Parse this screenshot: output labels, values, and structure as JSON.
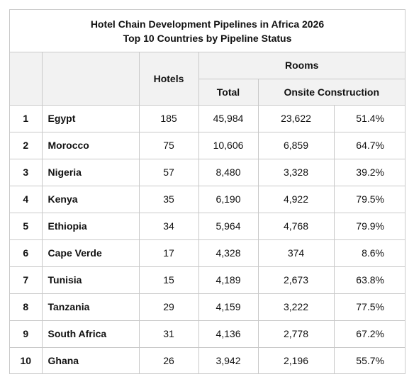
{
  "title": "Hotel Chain Development Pipelines in Africa 2026",
  "subtitle": "Top 10 Countries by Pipeline Status",
  "headers": {
    "hotels": "Hotels",
    "rooms": "Rooms",
    "total": "Total",
    "onsite": "Onsite Construction"
  },
  "rows": [
    {
      "rank": "1",
      "country": "Egypt",
      "hotels": "185",
      "total": "45,984",
      "onsite": "23,622",
      "pct": "51.4%"
    },
    {
      "rank": "2",
      "country": "Morocco",
      "hotels": "75",
      "total": "10,606",
      "onsite": "6,859",
      "pct": "64.7%"
    },
    {
      "rank": "3",
      "country": "Nigeria",
      "hotels": "57",
      "total": "8,480",
      "onsite": "3,328",
      "pct": "39.2%"
    },
    {
      "rank": "4",
      "country": "Kenya",
      "hotels": "35",
      "total": "6,190",
      "onsite": "4,922",
      "pct": "79.5%"
    },
    {
      "rank": "5",
      "country": "Ethiopia",
      "hotels": "34",
      "total": "5,964",
      "onsite": "4,768",
      "pct": "79.9%"
    },
    {
      "rank": "6",
      "country": "Cape Verde",
      "hotels": "17",
      "total": "4,328",
      "onsite": "374",
      "pct": "8.6%"
    },
    {
      "rank": "7",
      "country": "Tunisia",
      "hotels": "15",
      "total": "4,189",
      "onsite": "2,673",
      "pct": "63.8%"
    },
    {
      "rank": "8",
      "country": "Tanzania",
      "hotels": "29",
      "total": "4,159",
      "onsite": "3,222",
      "pct": "77.5%"
    },
    {
      "rank": "9",
      "country": "South Africa",
      "hotels": "31",
      "total": "4,136",
      "onsite": "2,778",
      "pct": "67.2%"
    },
    {
      "rank": "10",
      "country": "Ghana",
      "hotels": "26",
      "total": "3,942",
      "onsite": "2,196",
      "pct": "55.7%"
    }
  ]
}
